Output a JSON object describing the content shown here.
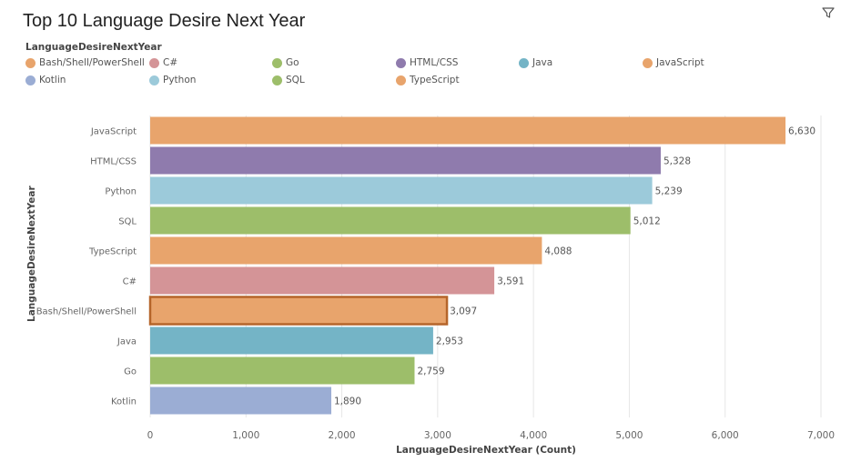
{
  "title": "Top 10 Language Desire Next Year",
  "toolbar": {
    "filter_icon": "filter-icon"
  },
  "legend": {
    "title": "LanguageDesireNextYear",
    "items": [
      {
        "label": "Bash/Shell/PowerShell",
        "color": "#E8A46C"
      },
      {
        "label": "C#",
        "color": "#D49497"
      },
      {
        "label": "Go",
        "color": "#9DBE6A"
      },
      {
        "label": "HTML/CSS",
        "color": "#8F7BAD"
      },
      {
        "label": "Java",
        "color": "#74B4C6"
      },
      {
        "label": "JavaScript",
        "color": "#E8A46C"
      },
      {
        "label": "Kotlin",
        "color": "#9BADD4"
      },
      {
        "label": "Python",
        "color": "#9CCADA"
      },
      {
        "label": "SQL",
        "color": "#9DBE6A"
      },
      {
        "label": "TypeScript",
        "color": "#E8A46C"
      }
    ]
  },
  "chart_data": {
    "type": "bar",
    "orientation": "horizontal",
    "title": "Top 10 Language Desire Next Year",
    "xlabel": "LanguageDesireNextYear (Count)",
    "ylabel": "LanguageDesireNextYear",
    "xlim": [
      0,
      7000
    ],
    "xticks": [
      "0",
      "1,000",
      "2,000",
      "3,000",
      "4,000",
      "5,000",
      "6,000",
      "7,000"
    ],
    "grid": true,
    "legend_position": "top",
    "categories": [
      "JavaScript",
      "HTML/CSS",
      "Python",
      "SQL",
      "TypeScript",
      "C#",
      "Bash/Shell/PowerShell",
      "Java",
      "Go",
      "Kotlin"
    ],
    "values": [
      6630,
      5328,
      5239,
      5012,
      4088,
      3591,
      3097,
      2953,
      2759,
      1890
    ],
    "value_labels": [
      "6,630",
      "5,328",
      "5,239",
      "5,012",
      "4,088",
      "3,591",
      "3,097",
      "2,953",
      "2,759",
      "1,890"
    ],
    "colors": [
      "#E8A46C",
      "#8F7BAD",
      "#9CCADA",
      "#9DBE6A",
      "#E8A46C",
      "#D49497",
      "#E8A46C",
      "#74B4C6",
      "#9DBE6A",
      "#9BADD4"
    ],
    "highlighted": "Bash/Shell/PowerShell",
    "highlight_color": "#B5652A"
  }
}
